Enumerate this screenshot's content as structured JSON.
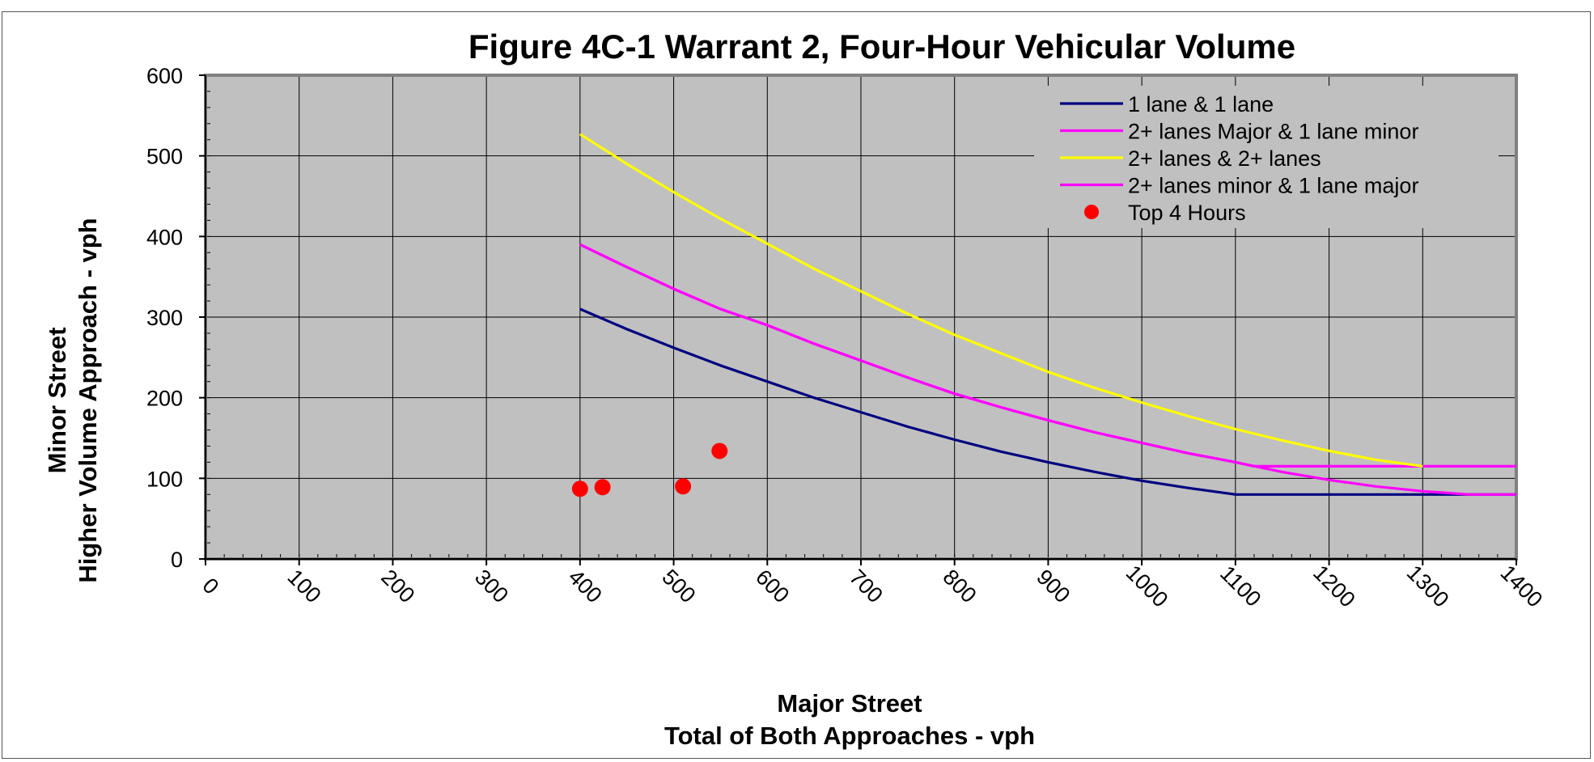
{
  "chart_data": {
    "type": "line",
    "title": "Figure 4C-1 Warrant 2, Four-Hour Vehicular Volume",
    "xlabel": [
      "Major Street",
      "Total of Both Approaches - vph"
    ],
    "ylabel": [
      "Minor Street",
      "Higher Volume Approach - vph"
    ],
    "xlim": [
      0,
      1400
    ],
    "ylim": [
      0,
      600
    ],
    "x_ticks": [
      "0",
      "100",
      "200",
      "300",
      "400",
      "500",
      "600",
      "700",
      "800",
      "900",
      "1000",
      "1100",
      "1200",
      "1300",
      "1400"
    ],
    "y_ticks": [
      "0",
      "100",
      "200",
      "300",
      "400",
      "500",
      "600"
    ],
    "grid": true,
    "legend_position": "top-right",
    "series": [
      {
        "name": "1 lane & 1 lane",
        "color": "#000080",
        "kind": "line",
        "x": [
          400,
          450,
          500,
          550,
          600,
          650,
          700,
          750,
          800,
          850,
          900,
          950,
          1000,
          1050,
          1100,
          1400
        ],
        "y": [
          310,
          285,
          262,
          240,
          220,
          200,
          182,
          164,
          148,
          133,
          120,
          108,
          97,
          88,
          80,
          80
        ]
      },
      {
        "name": "2+ lanes Major & 1 lane minor",
        "color": "#ff00ff",
        "kind": "line",
        "x": [
          400,
          450,
          500,
          550,
          600,
          650,
          700,
          750,
          800,
          850,
          900,
          950,
          1000,
          1050,
          1100,
          1120,
          1400
        ],
        "y": [
          390,
          362,
          335,
          310,
          290,
          267,
          246,
          225,
          205,
          188,
          172,
          157,
          144,
          131,
          120,
          115,
          115
        ]
      },
      {
        "name": "2+ lanes & 2+ lanes",
        "color": "#ffff00",
        "kind": "line",
        "x": [
          400,
          450,
          500,
          550,
          600,
          650,
          700,
          750,
          800,
          850,
          900,
          950,
          1000,
          1050,
          1100,
          1150,
          1200,
          1250,
          1300
        ],
        "y": [
          527,
          490,
          455,
          422,
          391,
          360,
          332,
          304,
          278,
          255,
          232,
          212,
          194,
          177,
          161,
          147,
          134,
          123,
          115
        ]
      },
      {
        "name": "2+ lanes minor & 1 lane major",
        "color": "#ff00ff",
        "kind": "line",
        "x": [
          400,
          450,
          500,
          550,
          600,
          650,
          700,
          750,
          800,
          850,
          900,
          950,
          1000,
          1050,
          1100,
          1150,
          1200,
          1250,
          1300,
          1350,
          1400
        ],
        "y": [
          390,
          362,
          335,
          310,
          290,
          267,
          246,
          225,
          205,
          188,
          172,
          157,
          144,
          131,
          120,
          108,
          98,
          90,
          84,
          80,
          80
        ]
      },
      {
        "name": "Top 4 Hours",
        "color": "#ff0000",
        "kind": "scatter",
        "x": [
          400,
          424,
          510,
          549
        ],
        "y": [
          87,
          89,
          90,
          134
        ]
      }
    ]
  }
}
